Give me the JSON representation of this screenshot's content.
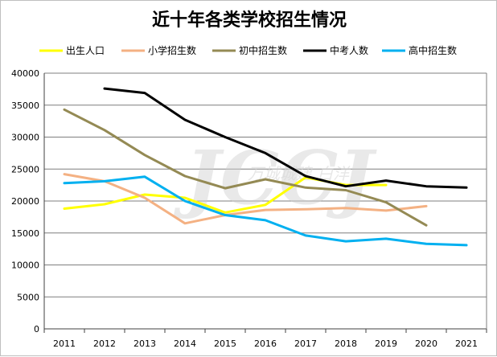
{
  "chart_data": {
    "type": "line",
    "title": "近十年各类学校招生情况",
    "categories": [
      "2011",
      "2012",
      "2013",
      "2014",
      "2015",
      "2016",
      "2017",
      "2018",
      "2019",
      "2020",
      "2021"
    ],
    "ylim": [
      0,
      40000
    ],
    "yticks": [
      0,
      5000,
      10000,
      15000,
      20000,
      25000,
      30000,
      35000,
      40000
    ],
    "grid": true,
    "legend_position": "top",
    "series": [
      {
        "name": "出生人口",
        "color": "#ffff00",
        "values": [
          18800,
          19500,
          21000,
          20500,
          18200,
          19400,
          23700,
          22500,
          22500,
          null,
          null
        ]
      },
      {
        "name": "小学招生数",
        "color": "#f4b183",
        "values": [
          24200,
          23100,
          20500,
          16500,
          17800,
          18600,
          18700,
          18900,
          18500,
          19200,
          null
        ]
      },
      {
        "name": "初中招生数",
        "color": "#948a54",
        "values": [
          34300,
          31100,
          27200,
          23900,
          22000,
          23400,
          22100,
          21700,
          19800,
          16200,
          null
        ]
      },
      {
        "name": "中考人数",
        "color": "#000000",
        "values": [
          null,
          37600,
          36900,
          32700,
          30000,
          27500,
          23900,
          22300,
          23200,
          22300,
          22100
        ]
      },
      {
        "name": "高中招生数",
        "color": "#00b0f0",
        "values": [
          22800,
          23100,
          23800,
          20000,
          17800,
          17000,
          14600,
          13700,
          14100,
          13300,
          13100
        ]
      }
    ]
  },
  "watermark": {
    "main": "JCCJ",
    "sub": "万城城建  白洋"
  }
}
